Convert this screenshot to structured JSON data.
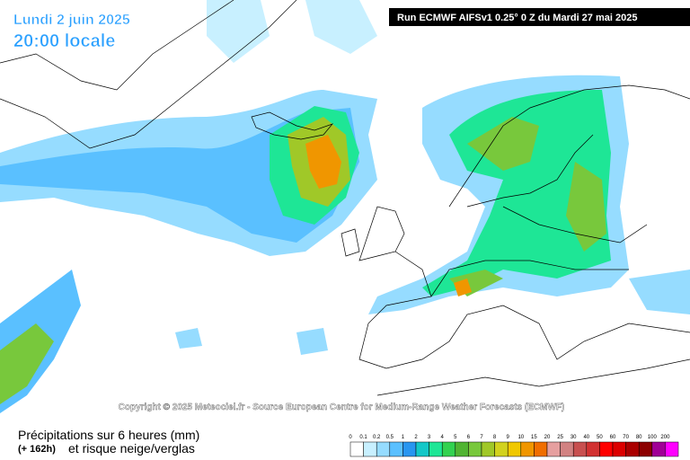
{
  "header": {
    "date": "Lundi 2 juin 2025",
    "time": "20:00 locale",
    "run": "Run ECMWF AIFSv1 0.25° 0 Z du Mardi 27 mai 2025"
  },
  "copyright": "Copyright © 2025 Meteociel.fr - Source European Centre for Medium-Range Weather Forecasts (ECMWF)",
  "footer": {
    "title": "Précipitations sur 6 heures (mm)",
    "lead": "(+ 162h)",
    "subtitle": "et risque neige/verglas"
  },
  "legend": {
    "labels": [
      "0",
      "0.1",
      "0.2",
      "0.5",
      "1",
      "2",
      "3",
      "4",
      "5",
      "6",
      "7",
      "8",
      "9",
      "10",
      "15",
      "20",
      "25",
      "30",
      "40",
      "50",
      "60",
      "70",
      "80",
      "100",
      "200"
    ],
    "colors": [
      "#ffffff",
      "#c8f0ff",
      "#96dcff",
      "#5ac0ff",
      "#2896f0",
      "#14c8c8",
      "#1ee696",
      "#32d250",
      "#50b432",
      "#78c83c",
      "#a0c828",
      "#d2d21e",
      "#f0c800",
      "#f09600",
      "#f06e00",
      "#e6a0a0",
      "#d28282",
      "#c85050",
      "#d23232",
      "#ff0000",
      "#dc0000",
      "#aa0000",
      "#8c0000",
      "#a00096",
      "#ff00ff"
    ]
  }
}
